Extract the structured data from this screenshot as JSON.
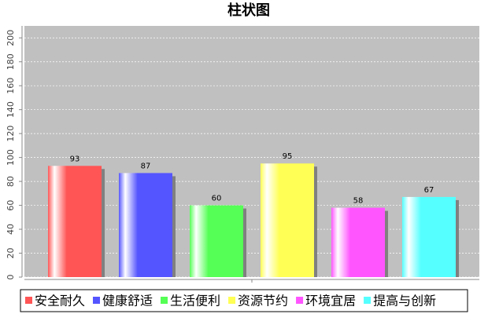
{
  "chart_data": {
    "type": "bar",
    "title": "柱状图",
    "categories": [
      null
    ],
    "series": [
      {
        "name": "安全耐久",
        "color": "#ff5555",
        "values": [
          93
        ]
      },
      {
        "name": "健康舒适",
        "color": "#5555ff",
        "values": [
          87
        ]
      },
      {
        "name": "生活便利",
        "color": "#55ff55",
        "values": [
          60
        ]
      },
      {
        "name": "资源节约",
        "color": "#ffff55",
        "values": [
          95
        ]
      },
      {
        "name": "环境宜居",
        "color": "#ff55ff",
        "values": [
          58
        ]
      },
      {
        "name": "提高与创新",
        "color": "#55ffff",
        "values": [
          67
        ]
      }
    ],
    "ylim": [
      0,
      210
    ],
    "yticks": [
      0,
      20,
      40,
      60,
      80,
      100,
      120,
      140,
      160,
      180,
      200
    ],
    "grid": true,
    "legend": "bottom"
  }
}
